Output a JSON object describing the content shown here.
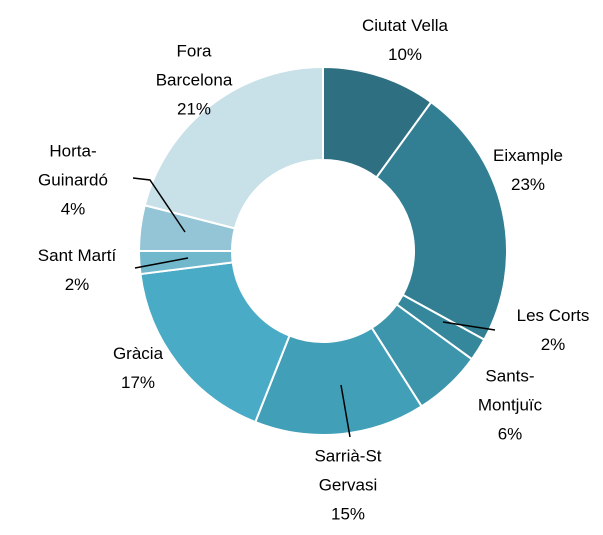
{
  "chart_data": {
    "type": "donut",
    "categories": [
      "Ciutat Vella",
      "Eixample",
      "Les Corts",
      "Sants-Montjuïc",
      "Sarrià-St Gervasi",
      "Gràcia",
      "Sant Martí",
      "Horta-Guinardó",
      "Fora Barcelona"
    ],
    "values": [
      10,
      23,
      2,
      6,
      15,
      17,
      2,
      4,
      21
    ],
    "value_labels": [
      "10%",
      "23%",
      "2%",
      "6%",
      "15%",
      "17%",
      "2%",
      "4%",
      "21%"
    ],
    "colors": [
      "#2e6f82",
      "#327f93",
      "#35889c",
      "#3c95ab",
      "#41a0b8",
      "#4aabc6",
      "#72b8cc",
      "#94c5d6",
      "#c8e0e8"
    ]
  }
}
